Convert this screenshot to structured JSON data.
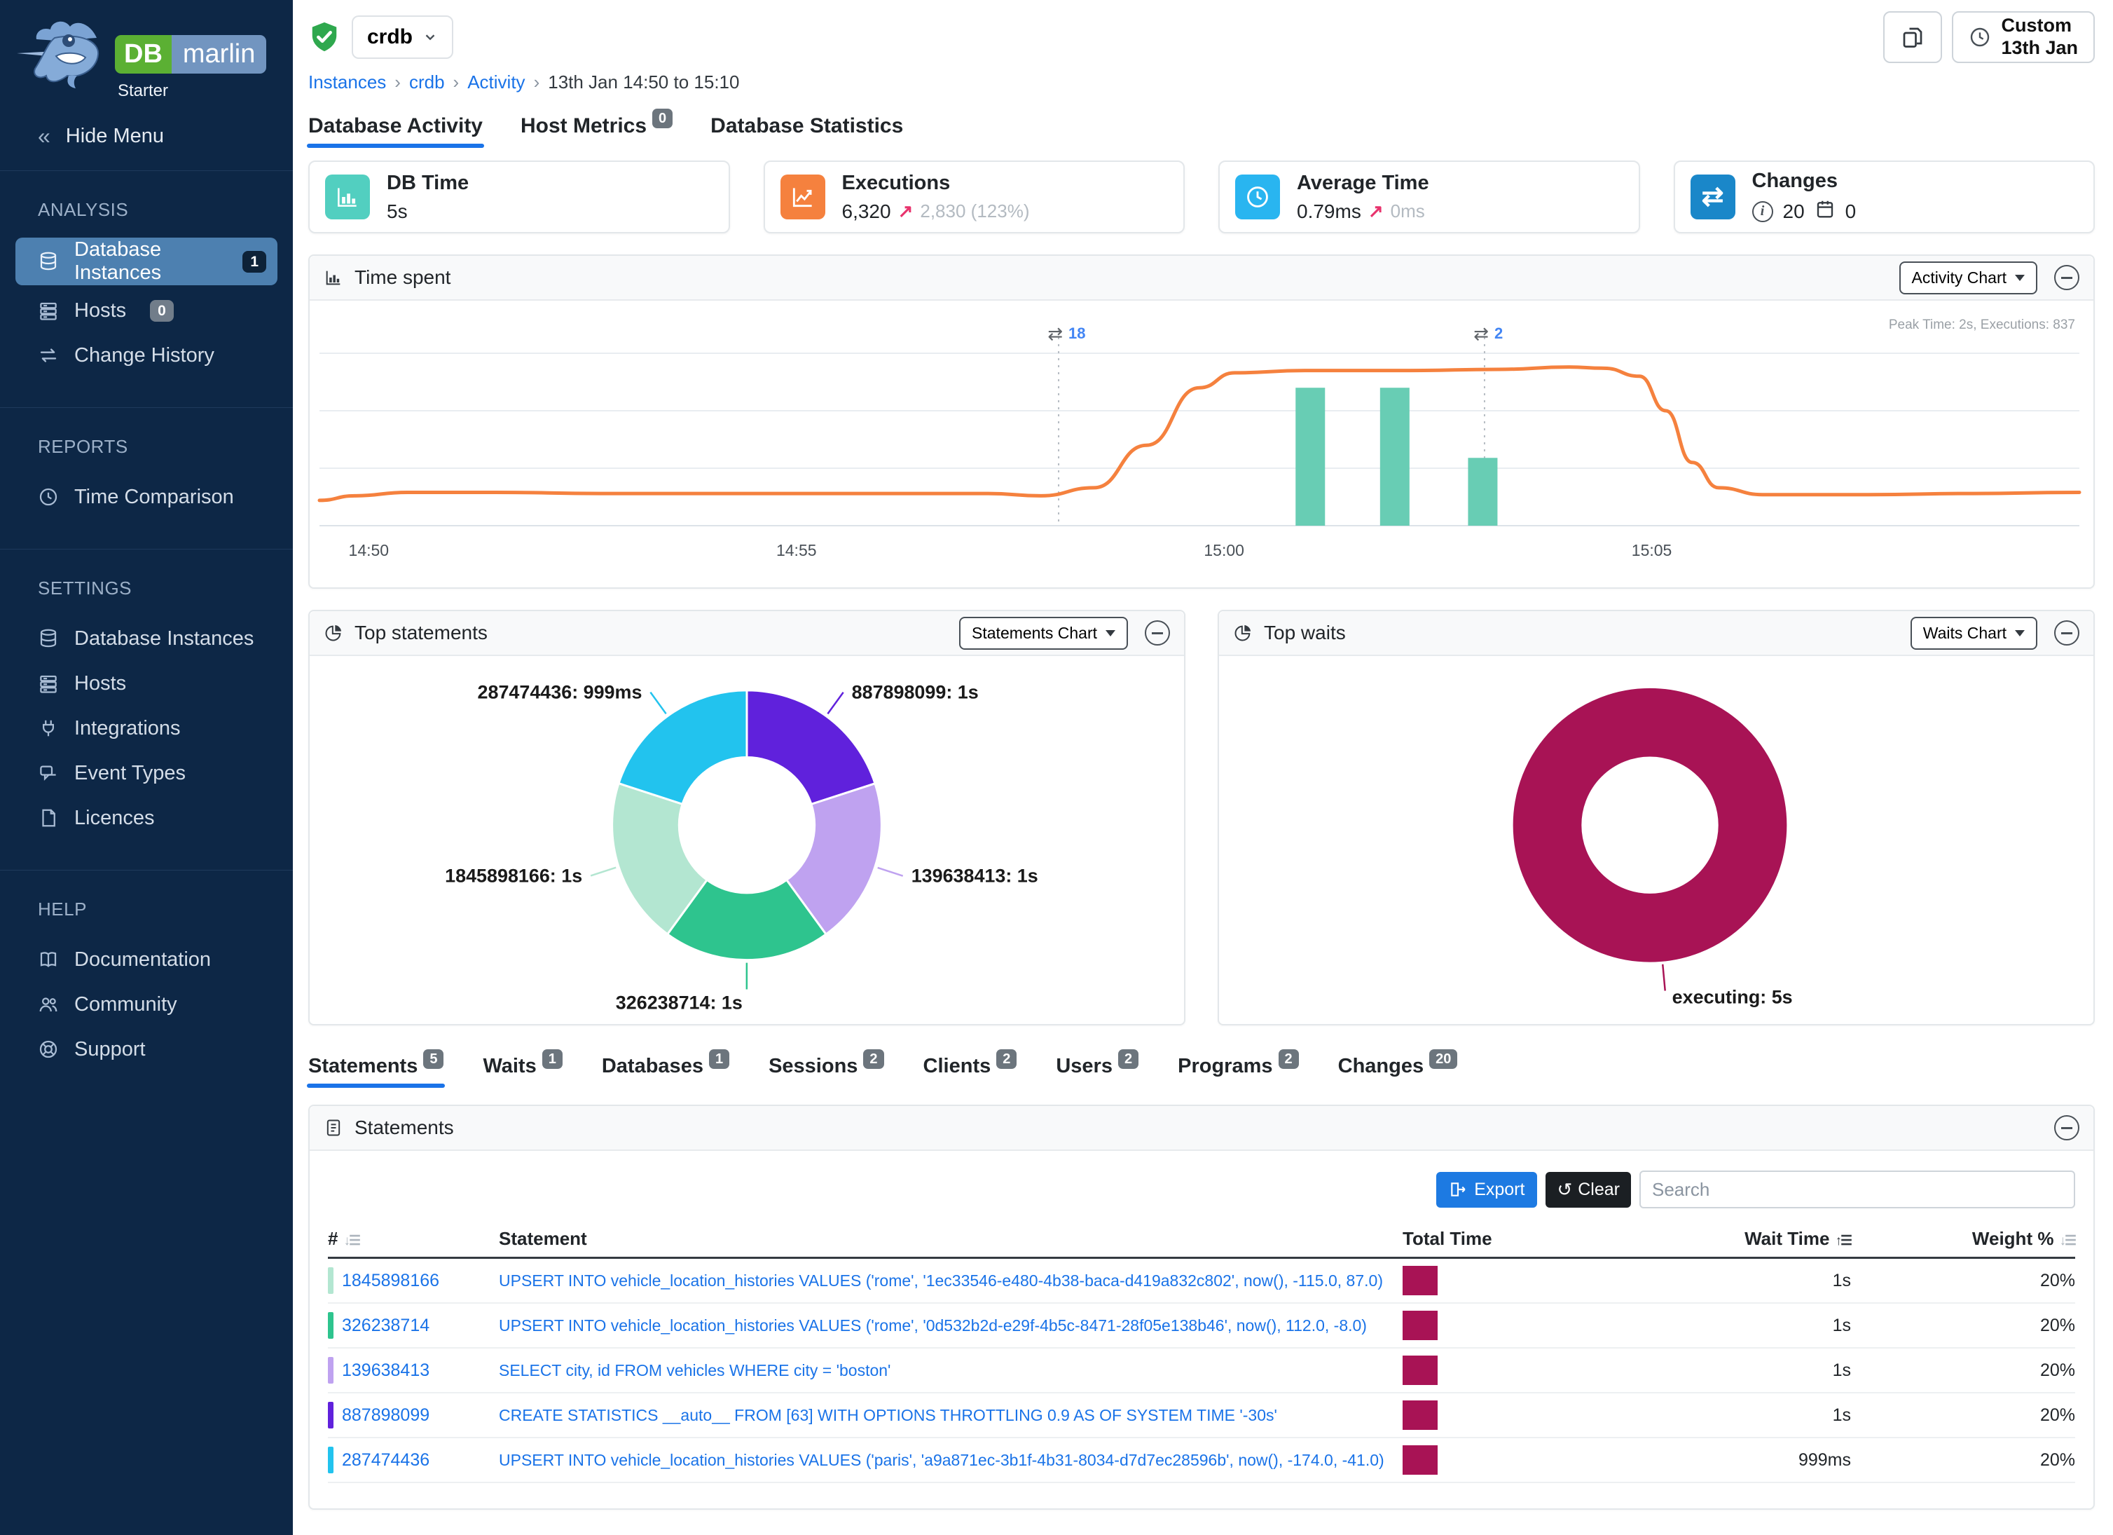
{
  "brand": {
    "db": "DB",
    "product": "marlin",
    "edition": "Starter"
  },
  "sidebar": {
    "hide_menu": "Hide Menu",
    "sections": [
      {
        "label": "ANALYSIS",
        "items": [
          {
            "label": "Database Instances",
            "icon": "database",
            "badge": "1",
            "badge_style": "dark",
            "active": true
          },
          {
            "label": "Hosts",
            "icon": "server",
            "badge": "0",
            "badge_style": "gray"
          },
          {
            "label": "Change History",
            "icon": "swap"
          }
        ]
      },
      {
        "label": "REPORTS",
        "items": [
          {
            "label": "Time Comparison",
            "icon": "clock"
          }
        ]
      },
      {
        "label": "SETTINGS",
        "items": [
          {
            "label": "Database Instances",
            "icon": "database"
          },
          {
            "label": "Hosts",
            "icon": "server"
          },
          {
            "label": "Integrations",
            "icon": "plug"
          },
          {
            "label": "Event Types",
            "icon": "event"
          },
          {
            "label": "Licences",
            "icon": "licence"
          }
        ]
      },
      {
        "label": "HELP",
        "items": [
          {
            "label": "Documentation",
            "icon": "book"
          },
          {
            "label": "Community",
            "icon": "people"
          },
          {
            "label": "Support",
            "icon": "support"
          }
        ]
      }
    ]
  },
  "header": {
    "instance": "crdb",
    "breadcrumb": [
      "Instances",
      "crdb",
      "Activity",
      "13th Jan 14:50 to 15:10"
    ],
    "time_range_button": {
      "line1": "Custom",
      "line2": "13th Jan"
    }
  },
  "primary_tabs": [
    {
      "label": "Database Activity",
      "active": true
    },
    {
      "label": "Host Metrics",
      "badge": "0"
    },
    {
      "label": "Database Statistics"
    }
  ],
  "cards": {
    "db_time": {
      "title": "DB Time",
      "value": "5s",
      "icon_color": "#52cfc0"
    },
    "executions": {
      "title": "Executions",
      "value": "6,320",
      "delta_arrow": "↗",
      "delta": "2,830 (123%)",
      "icon_color": "#f5813e"
    },
    "average_time": {
      "title": "Average Time",
      "value": "0.79ms",
      "delta_arrow": "↗",
      "delta": "0ms",
      "icon_color": "#29b5f0"
    },
    "changes": {
      "title": "Changes",
      "info_count": "20",
      "calendar_count": "0",
      "icon_color": "#1a87c9",
      "swap_glyph": "⇄"
    }
  },
  "panels": {
    "time_spent": {
      "title": "Time spent",
      "chart_selector": "Activity Chart"
    },
    "top_statements": {
      "title": "Top statements",
      "chart_selector": "Statements Chart"
    },
    "top_waits": {
      "title": "Top waits",
      "chart_selector": "Waits Chart"
    }
  },
  "secondary_tabs": [
    {
      "label": "Statements",
      "badge": "5",
      "active": true
    },
    {
      "label": "Waits",
      "badge": "1"
    },
    {
      "label": "Databases",
      "badge": "1"
    },
    {
      "label": "Sessions",
      "badge": "2"
    },
    {
      "label": "Clients",
      "badge": "2"
    },
    {
      "label": "Users",
      "badge": "2"
    },
    {
      "label": "Programs",
      "badge": "2"
    },
    {
      "label": "Changes",
      "badge": "20"
    }
  ],
  "statements_panel": {
    "title": "Statements",
    "export_label": "Export",
    "clear_label": "Clear",
    "search_placeholder": "Search",
    "columns": {
      "num": "#",
      "statement": "Statement",
      "total_time": "Total Time",
      "wait_time": "Wait Time",
      "weight": "Weight %"
    },
    "rows": [
      {
        "id": "1845898166",
        "color": "#b3e6d1",
        "statement": "UPSERT INTO vehicle_location_histories VALUES ('rome', '1ec33546-e480-4b38-baca-d419a832c802', now(), -115.0, 87.0)",
        "wait_time": "1s",
        "weight": "20%"
      },
      {
        "id": "326238714",
        "color": "#2ec48e",
        "statement": "UPSERT INTO vehicle_location_histories VALUES ('rome', '0d532b2d-e29f-4b5c-8471-28f05e138b46', now(), 112.0, -8.0)",
        "wait_time": "1s",
        "weight": "20%"
      },
      {
        "id": "139638413",
        "color": "#bfa2f0",
        "statement": "SELECT city, id FROM vehicles WHERE city = 'boston'",
        "wait_time": "1s",
        "weight": "20%"
      },
      {
        "id": "887898099",
        "color": "#6021dc",
        "statement": "CREATE STATISTICS __auto__ FROM [63] WITH OPTIONS THROTTLING 0.9 AS OF SYSTEM TIME '-30s'",
        "wait_time": "1s",
        "weight": "20%"
      },
      {
        "id": "287474436",
        "color": "#22c3ee",
        "statement": "UPSERT INTO vehicle_location_histories VALUES ('paris', 'a9a871ec-3b1f-4b31-8034-d7d7ec28596b', now(), -174.0, -41.0)",
        "wait_time": "999ms",
        "weight": "20%"
      }
    ]
  },
  "chart_data": [
    {
      "type": "line",
      "title": "Time spent",
      "annotation": "Peak Time: 2s, Executions: 837",
      "y_unit": "seconds",
      "y_max": 2,
      "gridline_step_seconds": 0.5,
      "x_ticks": [
        {
          "label": "14:50",
          "f": 0.028
        },
        {
          "label": "14:55",
          "f": 0.271
        },
        {
          "label": "15:00",
          "f": 0.514
        },
        {
          "label": "15:05",
          "f": 0.757
        }
      ],
      "line": {
        "name": "Time spent",
        "color": "#f5813e",
        "points": [
          [
            0,
            0.22
          ],
          [
            0.02,
            0.26
          ],
          [
            0.05,
            0.29
          ],
          [
            0.1,
            0.29
          ],
          [
            0.16,
            0.28
          ],
          [
            0.24,
            0.28
          ],
          [
            0.32,
            0.28
          ],
          [
            0.38,
            0.28
          ],
          [
            0.41,
            0.26
          ],
          [
            0.44,
            0.33
          ],
          [
            0.47,
            0.7
          ],
          [
            0.5,
            1.2
          ],
          [
            0.52,
            1.33
          ],
          [
            0.56,
            1.35
          ],
          [
            0.62,
            1.35
          ],
          [
            0.67,
            1.36
          ],
          [
            0.71,
            1.38
          ],
          [
            0.73,
            1.37
          ],
          [
            0.75,
            1.3
          ],
          [
            0.765,
            1.0
          ],
          [
            0.78,
            0.55
          ],
          [
            0.795,
            0.33
          ],
          [
            0.82,
            0.27
          ],
          [
            0.88,
            0.27
          ],
          [
            0.94,
            0.28
          ],
          [
            1,
            0.29
          ]
        ]
      },
      "bars": {
        "name": "Executions",
        "color": "#68cdb4",
        "items": [
          {
            "f": 0.563,
            "seconds": 1.2
          },
          {
            "f": 0.611,
            "seconds": 1.2
          },
          {
            "f": 0.661,
            "seconds": 0.59
          }
        ]
      },
      "change_markers": [
        {
          "f": 0.42,
          "count": "18"
        },
        {
          "f": 0.662,
          "count": "2"
        }
      ]
    },
    {
      "type": "donut",
      "title": "Top statements",
      "slices": [
        {
          "label": "887898099: 1s",
          "value": 1,
          "color": "#6021dc"
        },
        {
          "label": "139638413: 1s",
          "value": 1,
          "color": "#bfa2f0"
        },
        {
          "label": "326238714: 1s",
          "value": 1,
          "color": "#2ec48e"
        },
        {
          "label": "1845898166: 1s",
          "value": 1,
          "color": "#b3e6d1"
        },
        {
          "label": "287474436: 999ms",
          "value": 0.999,
          "color": "#22c3ee"
        }
      ]
    },
    {
      "type": "donut",
      "title": "Top waits",
      "slices": [
        {
          "label": "executing: 5s",
          "value": 5,
          "color": "#a81355"
        }
      ]
    }
  ]
}
